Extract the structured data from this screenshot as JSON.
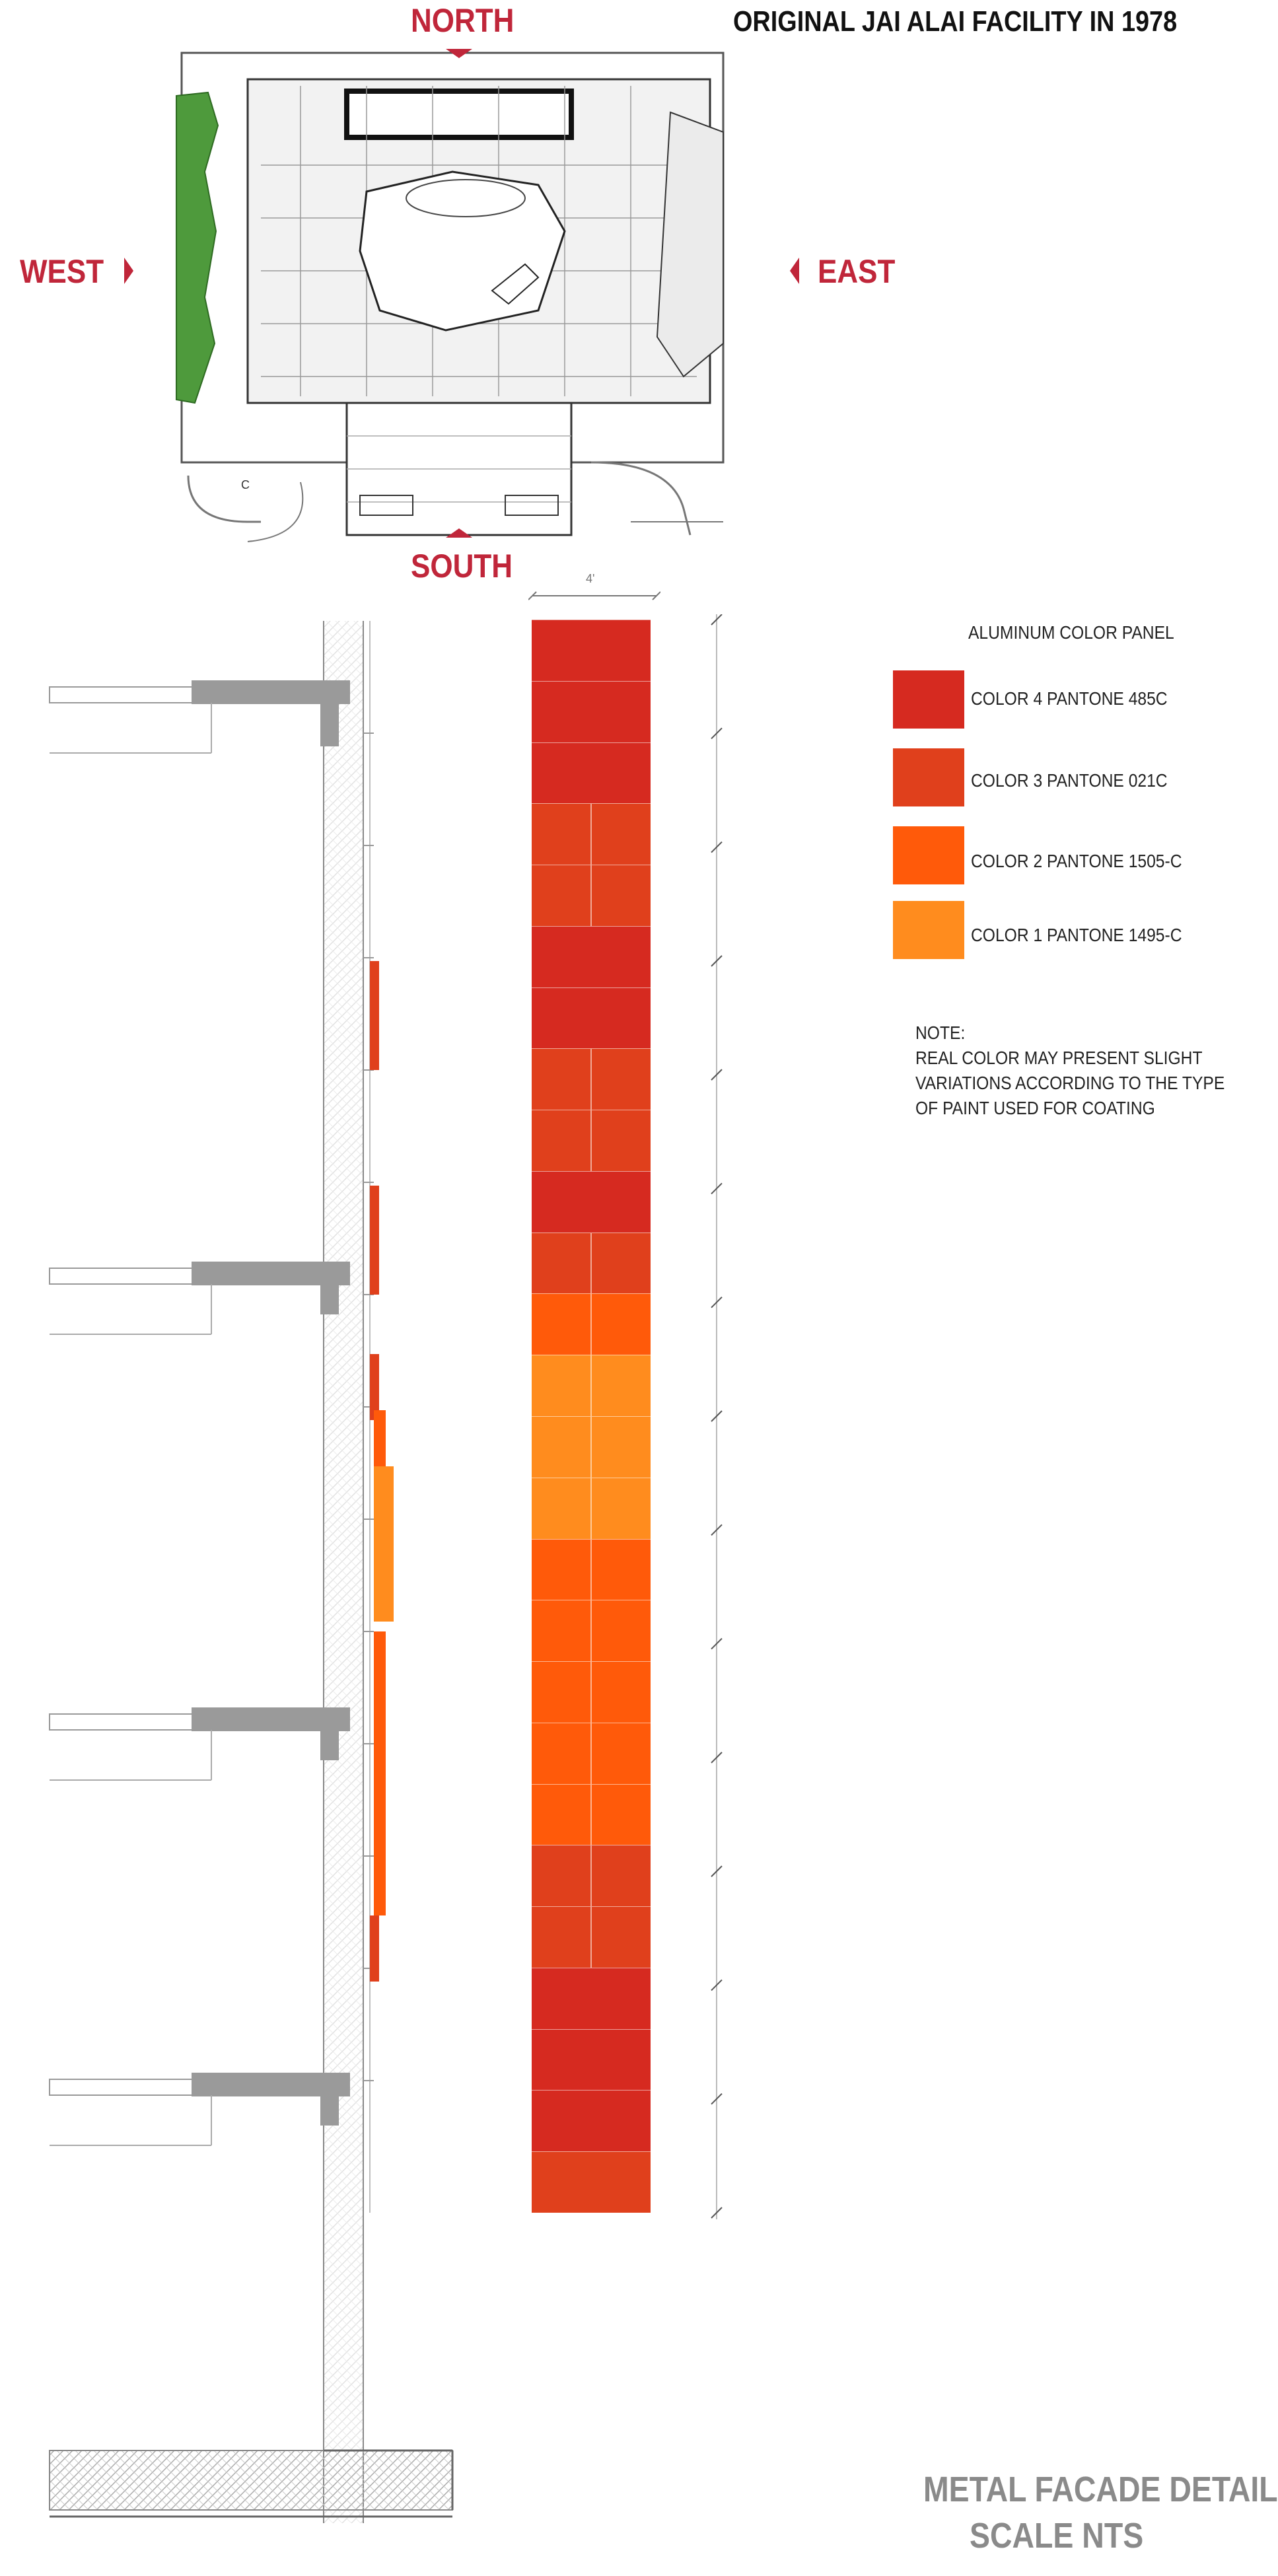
{
  "title": "ORIGINAL JAI ALAI FACILITY  IN  1978",
  "compass": {
    "north": "NORTH",
    "south": "SOUTH",
    "west": "WEST",
    "east": "EAST"
  },
  "legend": {
    "heading": "ALUMINUM COLOR PANEL",
    "items": [
      {
        "label": "COLOR 4 PANTONE 485C",
        "color": "#d62a20"
      },
      {
        "label": "COLOR 3 PANTONE 021C",
        "color": "#e0401c"
      },
      {
        "label": "COLOR 2 PANTONE 1505-C",
        "color": "#ff5a0a"
      },
      {
        "label": "COLOR 1 PANTONE 1495-C",
        "color": "#ff8c1e"
      }
    ]
  },
  "note": {
    "heading": "NOTE:",
    "lines": [
      "REAL COLOR MAY PRESENT SLIGHT",
      "VARIATIONS ACCORDING TO THE TYPE",
      "OF PAINT USED FOR COATING"
    ]
  },
  "panel_width_label": "4'",
  "footer": {
    "title": "METAL FACADE DETAIL",
    "scale": "SCALE  NTS"
  },
  "colors": {
    "compass_red": "#c0263a",
    "color4": "#d62a20",
    "color3": "#e0401c",
    "color2": "#ff5a0a",
    "color1": "#ff8c1e"
  },
  "panels": {
    "rows": [
      {
        "color": 4,
        "split": false
      },
      {
        "color": 4,
        "split": false
      },
      {
        "color": 4,
        "split": false
      },
      {
        "color": 3,
        "split": true
      },
      {
        "color": 3,
        "split": true
      },
      {
        "color": 4,
        "split": false
      },
      {
        "color": 4,
        "split": false
      },
      {
        "color": 3,
        "split": true
      },
      {
        "color": 3,
        "split": true
      },
      {
        "color": 4,
        "split": false
      },
      {
        "color": 3,
        "split": true
      },
      {
        "color": 2,
        "split": true
      },
      {
        "color": 1,
        "split": true
      },
      {
        "color": 1,
        "split": true
      },
      {
        "color": 1,
        "split": true
      },
      {
        "color": 2,
        "split": true
      },
      {
        "color": 2,
        "split": true
      },
      {
        "color": 2,
        "split": true
      },
      {
        "color": 2,
        "split": true
      },
      {
        "color": 2,
        "split": true
      },
      {
        "color": 3,
        "split": true
      },
      {
        "color": 3,
        "split": true
      },
      {
        "color": 4,
        "split": false
      },
      {
        "color": 4,
        "split": false
      },
      {
        "color": 4,
        "split": false
      },
      {
        "color": 3,
        "split": false
      }
    ]
  }
}
